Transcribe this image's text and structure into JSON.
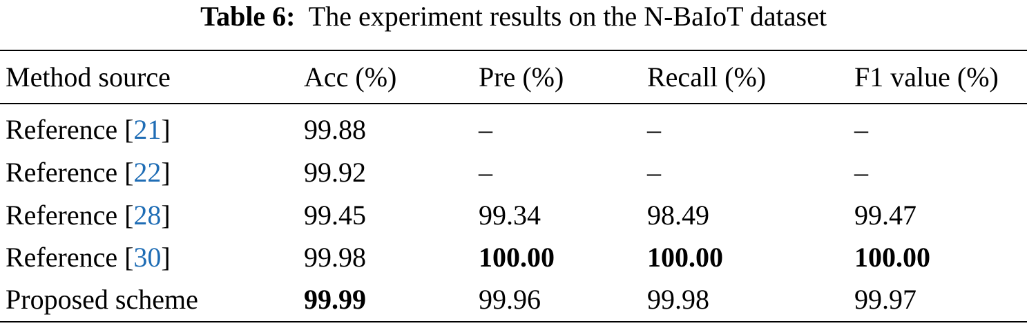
{
  "caption": {
    "label": "Table 6:",
    "title": "The experiment results on the N-BaIoT dataset"
  },
  "table": {
    "header": [
      "Method source",
      "Acc (%)",
      "Pre (%)",
      "Recall (%)",
      "F1 value (%)"
    ],
    "rows": [
      {
        "method": {
          "text": "Reference [",
          "ref": "21",
          "close": "]"
        },
        "cells": [
          "99.88",
          "–",
          "–",
          "–"
        ],
        "bold": []
      },
      {
        "method": {
          "text": "Reference [",
          "ref": "22",
          "close": "]"
        },
        "cells": [
          "99.92",
          "–",
          "–",
          "–"
        ],
        "bold": []
      },
      {
        "method": {
          "text": "Reference [",
          "ref": "28",
          "close": "]"
        },
        "cells": [
          "99.45",
          "99.34",
          "98.49",
          "99.47"
        ],
        "bold": []
      },
      {
        "method": {
          "text": "Reference [",
          "ref": "30",
          "close": "]"
        },
        "cells": [
          "99.98",
          "100.00",
          "100.00",
          "100.00"
        ],
        "bold": [
          1,
          2,
          3
        ]
      },
      {
        "method": {
          "text": "Proposed scheme"
        },
        "cells": [
          "99.99",
          "99.96",
          "99.98",
          "99.97"
        ],
        "bold": [
          0
        ]
      }
    ]
  }
}
